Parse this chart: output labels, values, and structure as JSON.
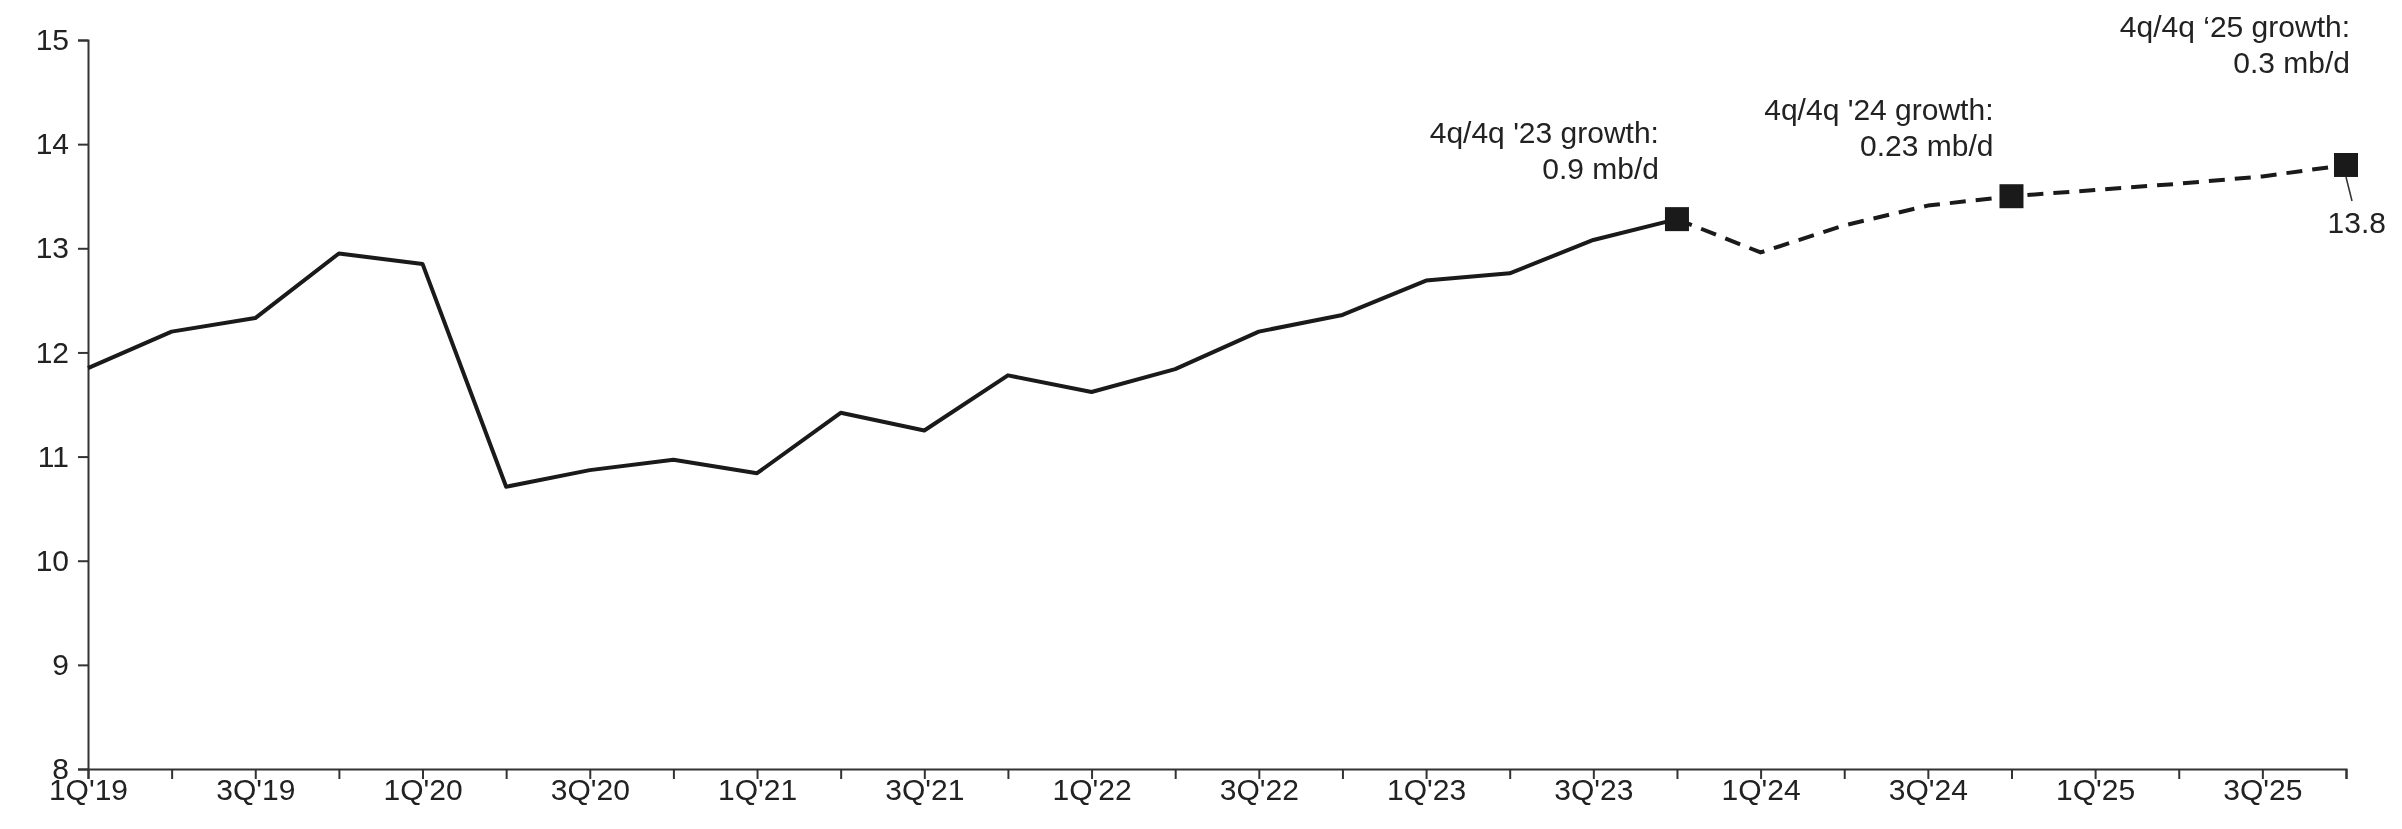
{
  "chart_data": {
    "type": "line",
    "categories": [
      "1Q'19",
      null,
      "3Q'19",
      null,
      "1Q'20",
      null,
      "3Q'20",
      null,
      "1Q'21",
      null,
      "3Q'21",
      null,
      "1Q'22",
      null,
      "3Q'22",
      null,
      "1Q'23",
      null,
      "3Q'23",
      null,
      "1Q'24",
      null,
      "3Q'24",
      null,
      "1Q'25",
      null,
      "3Q'25",
      null
    ],
    "series": [
      {
        "color": "#1a1a1a",
        "line_style": "solid",
        "marker": "none",
        "values": [
          11.85,
          12.2,
          12.33,
          12.95,
          12.85,
          10.71,
          10.87,
          10.97,
          10.84,
          11.42,
          11.25,
          11.78,
          11.62,
          11.84,
          12.2,
          12.36,
          12.69,
          12.76,
          13.08,
          13.28,
          null,
          null,
          null,
          null,
          null,
          null,
          null,
          null
        ]
      },
      {
        "color": "#1a1a1a",
        "line_style": "dashed",
        "marker": "none",
        "values": [
          null,
          null,
          null,
          null,
          null,
          null,
          null,
          null,
          null,
          null,
          null,
          null,
          null,
          null,
          null,
          null,
          null,
          null,
          null,
          13.28,
          12.96,
          13.22,
          13.41,
          13.5,
          13.56,
          13.62,
          13.69,
          13.8
        ]
      },
      {
        "type": "scatter",
        "color": "#1a1a1a",
        "marker": "square",
        "values": [
          null,
          null,
          null,
          null,
          null,
          null,
          null,
          null,
          null,
          null,
          null,
          null,
          null,
          null,
          null,
          null,
          null,
          null,
          null,
          13.28,
          null,
          null,
          null,
          13.5,
          null,
          null,
          null,
          13.8
        ],
        "value_labels": [
          null,
          null,
          null,
          null,
          null,
          null,
          null,
          null,
          null,
          null,
          null,
          null,
          null,
          null,
          null,
          null,
          null,
          null,
          null,
          null,
          null,
          null,
          null,
          null,
          null,
          null,
          null,
          "13.8"
        ]
      }
    ],
    "ylim": [
      8,
      15
    ],
    "yticks": [
      8,
      9,
      10,
      11,
      12,
      13,
      14,
      15
    ],
    "grid": false,
    "annotations": [
      "4q/4q '23 growth:\n0.9 mb/d",
      "4q/4q '24 growth:\n0.23 mb/d",
      "4q/4q ‘25 growth:\n0.3 mb/d"
    ]
  }
}
